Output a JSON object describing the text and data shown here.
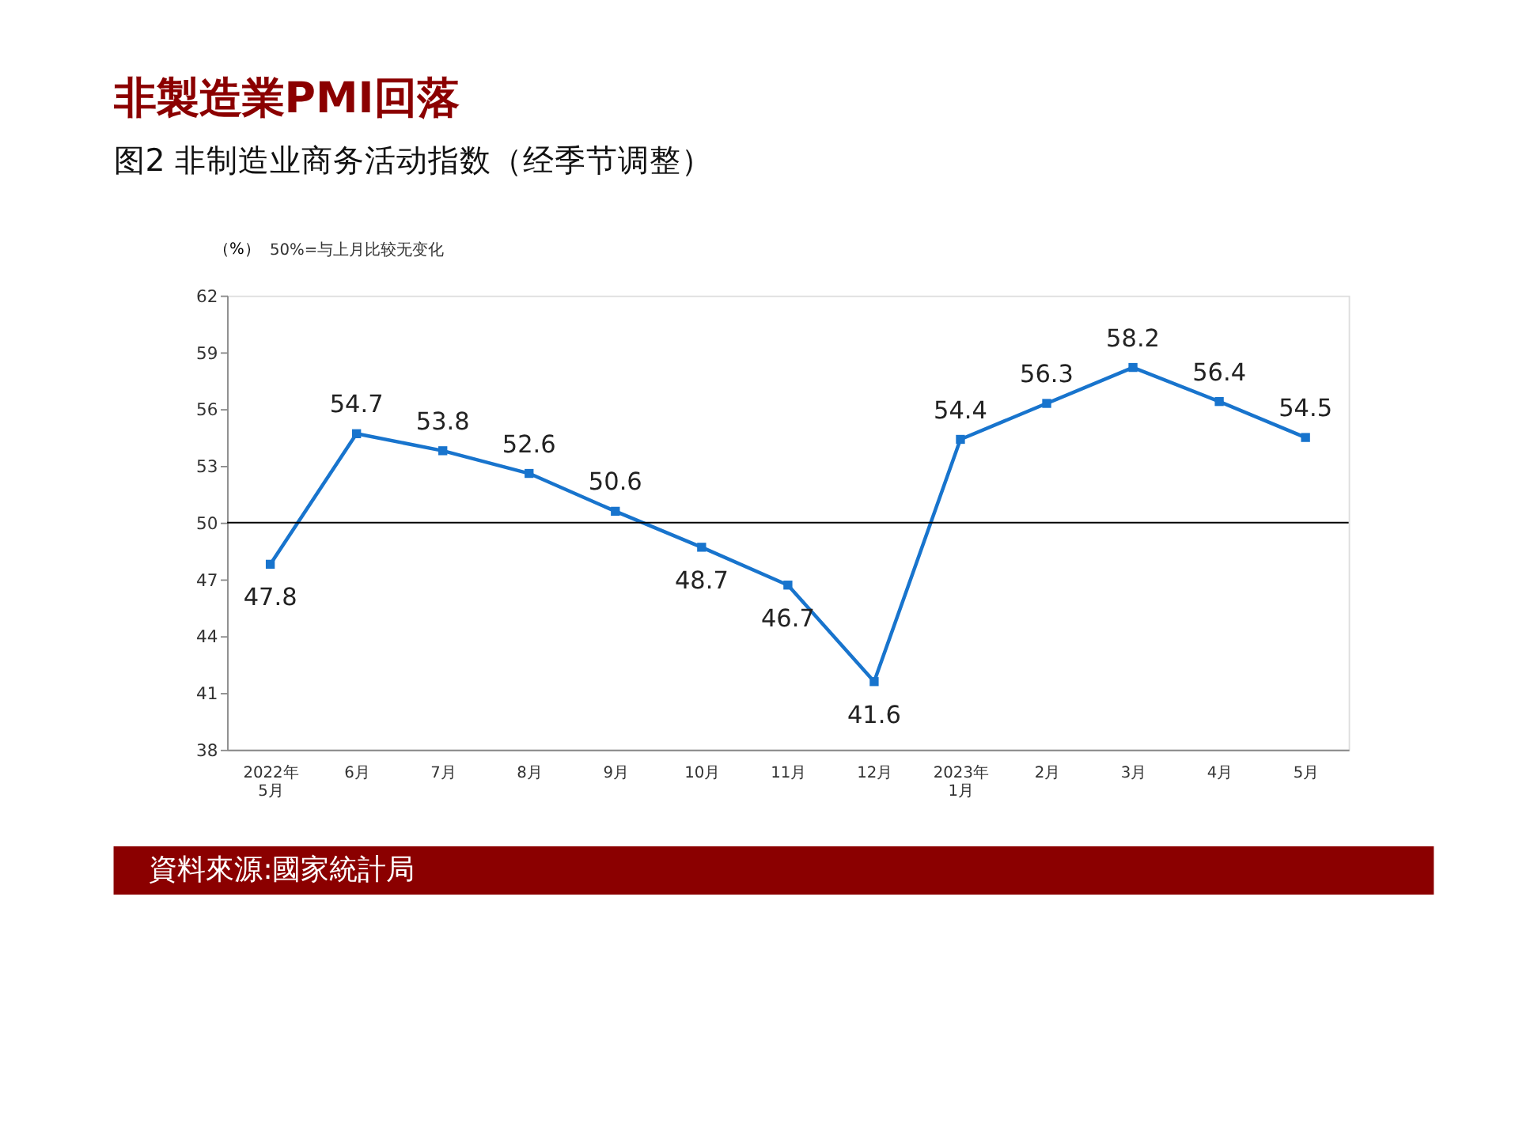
{
  "chart_data": {
    "type": "line",
    "title": "非製造業PMI回落",
    "subtitle": "图2  非制造业商务活动指数（经季节调整）",
    "ylabel": "（%）",
    "annotations": [
      "50%=与上月比较无变化",
      "資料來源:國家統計局"
    ],
    "categories": [
      "2022年\n5月",
      "6月",
      "7月",
      "8月",
      "9月",
      "10月",
      "11月",
      "12月",
      "2023年\n1月",
      "2月",
      "3月",
      "4月",
      "5月"
    ],
    "series": [
      {
        "color": "#1874cd",
        "values": [
          47.8,
          54.7,
          53.8,
          52.6,
          50.6,
          48.7,
          46.7,
          41.6,
          54.4,
          56.3,
          58.2,
          56.4,
          54.5
        ]
      }
    ],
    "ylim": [
      38,
      62
    ],
    "yticks": [
      38,
      41,
      44,
      47,
      50,
      53,
      56,
      59,
      62
    ],
    "ref_lines": [
      {
        "axis": "y",
        "value": 50,
        "color": "#000000"
      }
    ],
    "marker": "square",
    "line_style": "solid",
    "grid": false,
    "data_labels": true
  }
}
